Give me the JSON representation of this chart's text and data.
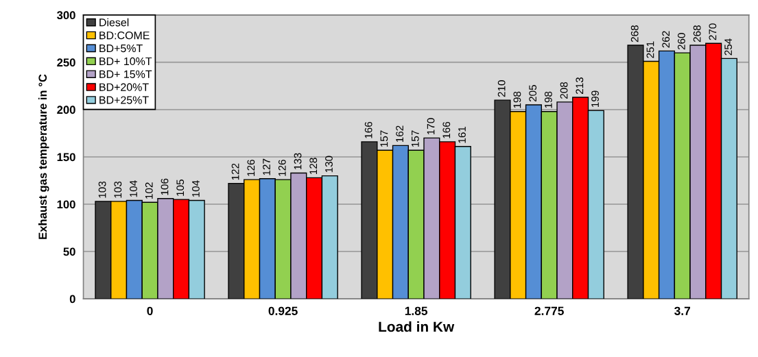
{
  "chart_data": {
    "type": "bar",
    "xlabel": "Load in Kw",
    "ylabel": "Exhaust gas temperature in °C",
    "categories": [
      "0",
      "0.925",
      "1.85",
      "2.775",
      "3.7"
    ],
    "series": [
      {
        "name": "Diesel",
        "color": "#404040",
        "values": [
          103,
          122,
          166,
          210,
          268
        ]
      },
      {
        "name": "BD:COME",
        "color": "#ffc000",
        "values": [
          103,
          126,
          157,
          198,
          251
        ]
      },
      {
        "name": "BD+5%T",
        "color": "#558ed5",
        "values": [
          104,
          127,
          162,
          205,
          262
        ]
      },
      {
        "name": "BD+ 10%T",
        "color": "#92d050",
        "values": [
          102,
          126,
          157,
          198,
          260
        ]
      },
      {
        "name": "BD+ 15%T",
        "color": "#b3a2c7",
        "values": [
          106,
          133,
          170,
          208,
          268
        ]
      },
      {
        "name": "BD+20%T",
        "color": "#ff0000",
        "values": [
          105,
          128,
          166,
          213,
          270
        ]
      },
      {
        "name": "BD+25%T",
        "color": "#93cddd",
        "values": [
          104,
          130,
          161,
          199,
          254
        ]
      }
    ],
    "ylim": [
      0,
      300
    ],
    "yticks": [
      0,
      50,
      100,
      150,
      200,
      250,
      300
    ],
    "grid": "y",
    "legend": "top left",
    "data_labels": true
  }
}
